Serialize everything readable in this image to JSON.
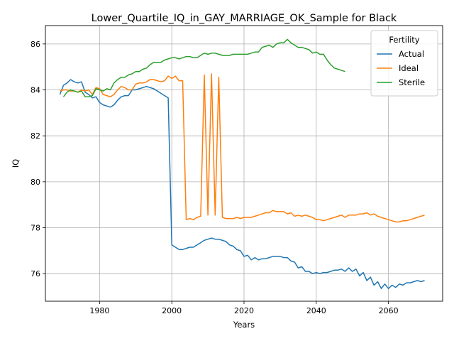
{
  "chart_data": {
    "type": "line",
    "title": "Lower_Quartile_IQ_in_GAY_MARRIAGE_OK_Sample for Black",
    "xlabel": "Years",
    "ylabel": "IQ",
    "xlim": [
      1965,
      2075
    ],
    "ylim": [
      74.8,
      86.8
    ],
    "xticks": [
      1980,
      2000,
      2020,
      2040,
      2060
    ],
    "yticks": [
      76,
      78,
      80,
      82,
      84,
      86
    ],
    "grid": true,
    "legend": {
      "title": "Fertility",
      "placement": "top-right"
    },
    "series": [
      {
        "name": "Actual",
        "color": "#1f77b4",
        "points": [
          [
            1969,
            83.8
          ],
          [
            1970,
            84.2
          ],
          [
            1971,
            84.3
          ],
          [
            1972,
            84.45
          ],
          [
            1973,
            84.35
          ],
          [
            1974,
            84.3
          ],
          [
            1975,
            84.35
          ],
          [
            1976,
            83.9
          ],
          [
            1977,
            83.8
          ],
          [
            1978,
            83.65
          ],
          [
            1979,
            83.7
          ],
          [
            1980,
            83.45
          ],
          [
            1981,
            83.35
          ],
          [
            1982,
            83.3
          ],
          [
            1983,
            83.25
          ],
          [
            1984,
            83.35
          ],
          [
            1985,
            83.55
          ],
          [
            1986,
            83.7
          ],
          [
            1987,
            83.75
          ],
          [
            1988,
            83.75
          ],
          [
            1989,
            84.0
          ],
          [
            1990,
            84.0
          ],
          [
            1991,
            84.05
          ],
          [
            1992,
            84.1
          ],
          [
            1993,
            84.15
          ],
          [
            1994,
            84.1
          ],
          [
            1995,
            84.05
          ],
          [
            1996,
            83.95
          ],
          [
            1997,
            83.85
          ],
          [
            1998,
            83.75
          ],
          [
            1999,
            83.65
          ],
          [
            2000,
            77.25
          ],
          [
            2001,
            77.15
          ],
          [
            2002,
            77.05
          ],
          [
            2003,
            77.05
          ],
          [
            2004,
            77.1
          ],
          [
            2005,
            77.15
          ],
          [
            2006,
            77.15
          ],
          [
            2007,
            77.25
          ],
          [
            2008,
            77.35
          ],
          [
            2009,
            77.45
          ],
          [
            2010,
            77.5
          ],
          [
            2011,
            77.55
          ],
          [
            2012,
            77.5
          ],
          [
            2013,
            77.5
          ],
          [
            2014,
            77.45
          ],
          [
            2015,
            77.4
          ],
          [
            2016,
            77.25
          ],
          [
            2017,
            77.2
          ],
          [
            2018,
            77.05
          ],
          [
            2019,
            77.0
          ],
          [
            2020,
            76.75
          ],
          [
            2021,
            76.8
          ],
          [
            2022,
            76.6
          ],
          [
            2023,
            76.7
          ],
          [
            2024,
            76.6
          ],
          [
            2025,
            76.65
          ],
          [
            2026,
            76.65
          ],
          [
            2027,
            76.7
          ],
          [
            2028,
            76.75
          ],
          [
            2029,
            76.75
          ],
          [
            2030,
            76.75
          ],
          [
            2031,
            76.7
          ],
          [
            2032,
            76.7
          ],
          [
            2033,
            76.55
          ],
          [
            2034,
            76.5
          ],
          [
            2035,
            76.25
          ],
          [
            2036,
            76.3
          ],
          [
            2037,
            76.1
          ],
          [
            2038,
            76.1
          ],
          [
            2039,
            76.0
          ],
          [
            2040,
            76.05
          ],
          [
            2041,
            76.0
          ],
          [
            2042,
            76.05
          ],
          [
            2043,
            76.05
          ],
          [
            2044,
            76.1
          ],
          [
            2045,
            76.15
          ],
          [
            2046,
            76.15
          ],
          [
            2047,
            76.2
          ],
          [
            2048,
            76.1
          ],
          [
            2049,
            76.25
          ],
          [
            2050,
            76.1
          ],
          [
            2051,
            76.2
          ],
          [
            2052,
            75.9
          ],
          [
            2053,
            76.05
          ],
          [
            2054,
            75.7
          ],
          [
            2055,
            75.85
          ],
          [
            2056,
            75.5
          ],
          [
            2057,
            75.65
          ],
          [
            2058,
            75.35
          ],
          [
            2059,
            75.55
          ],
          [
            2060,
            75.35
          ],
          [
            2061,
            75.5
          ],
          [
            2062,
            75.4
          ],
          [
            2063,
            75.55
          ],
          [
            2064,
            75.5
          ],
          [
            2065,
            75.6
          ],
          [
            2066,
            75.6
          ],
          [
            2067,
            75.65
          ],
          [
            2068,
            75.7
          ],
          [
            2069,
            75.65
          ],
          [
            2070,
            75.7
          ]
        ]
      },
      {
        "name": "Ideal",
        "color": "#ff7f0e",
        "points": [
          [
            1969,
            83.95
          ],
          [
            1970,
            84.0
          ],
          [
            1971,
            84.0
          ],
          [
            1972,
            83.95
          ],
          [
            1973,
            83.95
          ],
          [
            1974,
            83.9
          ],
          [
            1975,
            84.0
          ],
          [
            1976,
            83.95
          ],
          [
            1977,
            84.0
          ],
          [
            1978,
            83.8
          ],
          [
            1979,
            84.1
          ],
          [
            1980,
            84.05
          ],
          [
            1981,
            83.8
          ],
          [
            1982,
            83.75
          ],
          [
            1983,
            83.7
          ],
          [
            1984,
            83.8
          ],
          [
            1985,
            84.0
          ],
          [
            1986,
            84.15
          ],
          [
            1987,
            84.1
          ],
          [
            1988,
            84.0
          ],
          [
            1989,
            84.0
          ],
          [
            1990,
            84.25
          ],
          [
            1991,
            84.3
          ],
          [
            1992,
            84.3
          ],
          [
            1993,
            84.35
          ],
          [
            1994,
            84.45
          ],
          [
            1995,
            84.45
          ],
          [
            1996,
            84.4
          ],
          [
            1997,
            84.35
          ],
          [
            1998,
            84.4
          ],
          [
            1999,
            84.6
          ],
          [
            2000,
            84.5
          ],
          [
            2001,
            84.6
          ],
          [
            2002,
            84.4
          ],
          [
            2003,
            84.4
          ],
          [
            2004,
            78.35
          ],
          [
            2005,
            78.4
          ],
          [
            2006,
            78.35
          ],
          [
            2007,
            78.45
          ],
          [
            2008,
            78.5
          ],
          [
            2009,
            84.65
          ],
          [
            2010,
            78.55
          ],
          [
            2011,
            84.7
          ],
          [
            2012,
            78.55
          ],
          [
            2013,
            84.55
          ],
          [
            2014,
            78.45
          ],
          [
            2015,
            78.4
          ],
          [
            2016,
            78.4
          ],
          [
            2017,
            78.4
          ],
          [
            2018,
            78.45
          ],
          [
            2019,
            78.4
          ],
          [
            2020,
            78.45
          ],
          [
            2021,
            78.45
          ],
          [
            2022,
            78.45
          ],
          [
            2023,
            78.5
          ],
          [
            2024,
            78.55
          ],
          [
            2025,
            78.6
          ],
          [
            2026,
            78.65
          ],
          [
            2027,
            78.65
          ],
          [
            2028,
            78.75
          ],
          [
            2029,
            78.7
          ],
          [
            2030,
            78.7
          ],
          [
            2031,
            78.7
          ],
          [
            2032,
            78.6
          ],
          [
            2033,
            78.65
          ],
          [
            2034,
            78.5
          ],
          [
            2035,
            78.55
          ],
          [
            2036,
            78.5
          ],
          [
            2037,
            78.55
          ],
          [
            2038,
            78.5
          ],
          [
            2039,
            78.45
          ],
          [
            2040,
            78.35
          ],
          [
            2041,
            78.35
          ],
          [
            2042,
            78.3
          ],
          [
            2043,
            78.35
          ],
          [
            2044,
            78.4
          ],
          [
            2045,
            78.45
          ],
          [
            2046,
            78.5
          ],
          [
            2047,
            78.55
          ],
          [
            2048,
            78.45
          ],
          [
            2049,
            78.55
          ],
          [
            2050,
            78.55
          ],
          [
            2051,
            78.55
          ],
          [
            2052,
            78.6
          ],
          [
            2053,
            78.6
          ],
          [
            2054,
            78.65
          ],
          [
            2055,
            78.55
          ],
          [
            2056,
            78.6
          ],
          [
            2057,
            78.5
          ],
          [
            2058,
            78.45
          ],
          [
            2059,
            78.4
          ],
          [
            2060,
            78.35
          ],
          [
            2061,
            78.3
          ],
          [
            2062,
            78.25
          ],
          [
            2063,
            78.25
          ],
          [
            2064,
            78.3
          ],
          [
            2065,
            78.3
          ],
          [
            2066,
            78.35
          ],
          [
            2067,
            78.4
          ],
          [
            2068,
            78.45
          ],
          [
            2069,
            78.5
          ],
          [
            2070,
            78.55
          ]
        ]
      },
      {
        "name": "Sterile",
        "color": "#2ca02c",
        "points": [
          [
            1970,
            83.7
          ],
          [
            1971,
            83.9
          ],
          [
            1972,
            84.0
          ],
          [
            1973,
            83.95
          ],
          [
            1974,
            83.9
          ],
          [
            1975,
            83.95
          ],
          [
            1976,
            83.7
          ],
          [
            1977,
            83.7
          ],
          [
            1978,
            83.75
          ],
          [
            1979,
            84.05
          ],
          [
            1980,
            84.0
          ],
          [
            1981,
            83.95
          ],
          [
            1982,
            84.05
          ],
          [
            1983,
            84.0
          ],
          [
            1984,
            84.3
          ],
          [
            1985,
            84.45
          ],
          [
            1986,
            84.55
          ],
          [
            1987,
            84.55
          ],
          [
            1988,
            84.65
          ],
          [
            1989,
            84.7
          ],
          [
            1990,
            84.8
          ],
          [
            1991,
            84.8
          ],
          [
            1992,
            84.9
          ],
          [
            1993,
            84.95
          ],
          [
            1994,
            85.1
          ],
          [
            1995,
            85.2
          ],
          [
            1996,
            85.2
          ],
          [
            1997,
            85.2
          ],
          [
            1998,
            85.3
          ],
          [
            1999,
            85.35
          ],
          [
            2000,
            85.4
          ],
          [
            2001,
            85.4
          ],
          [
            2002,
            85.35
          ],
          [
            2003,
            85.4
          ],
          [
            2004,
            85.45
          ],
          [
            2005,
            85.45
          ],
          [
            2006,
            85.4
          ],
          [
            2007,
            85.4
          ],
          [
            2008,
            85.5
          ],
          [
            2009,
            85.6
          ],
          [
            2010,
            85.55
          ],
          [
            2011,
            85.6
          ],
          [
            2012,
            85.6
          ],
          [
            2013,
            85.55
          ],
          [
            2014,
            85.5
          ],
          [
            2015,
            85.5
          ],
          [
            2016,
            85.5
          ],
          [
            2017,
            85.55
          ],
          [
            2018,
            85.55
          ],
          [
            2019,
            85.55
          ],
          [
            2020,
            85.55
          ],
          [
            2021,
            85.55
          ],
          [
            2022,
            85.6
          ],
          [
            2023,
            85.65
          ],
          [
            2024,
            85.65
          ],
          [
            2025,
            85.85
          ],
          [
            2026,
            85.9
          ],
          [
            2027,
            85.95
          ],
          [
            2028,
            85.85
          ],
          [
            2029,
            86.0
          ],
          [
            2030,
            86.05
          ],
          [
            2031,
            86.05
          ],
          [
            2032,
            86.2
          ],
          [
            2033,
            86.05
          ],
          [
            2034,
            85.95
          ],
          [
            2035,
            85.85
          ],
          [
            2036,
            85.85
          ],
          [
            2037,
            85.8
          ],
          [
            2038,
            85.75
          ],
          [
            2039,
            85.6
          ],
          [
            2040,
            85.65
          ],
          [
            2041,
            85.55
          ],
          [
            2042,
            85.55
          ],
          [
            2043,
            85.3
          ],
          [
            2044,
            85.1
          ],
          [
            2045,
            84.95
          ],
          [
            2046,
            84.9
          ],
          [
            2047,
            84.85
          ],
          [
            2048,
            84.8
          ]
        ]
      }
    ]
  }
}
